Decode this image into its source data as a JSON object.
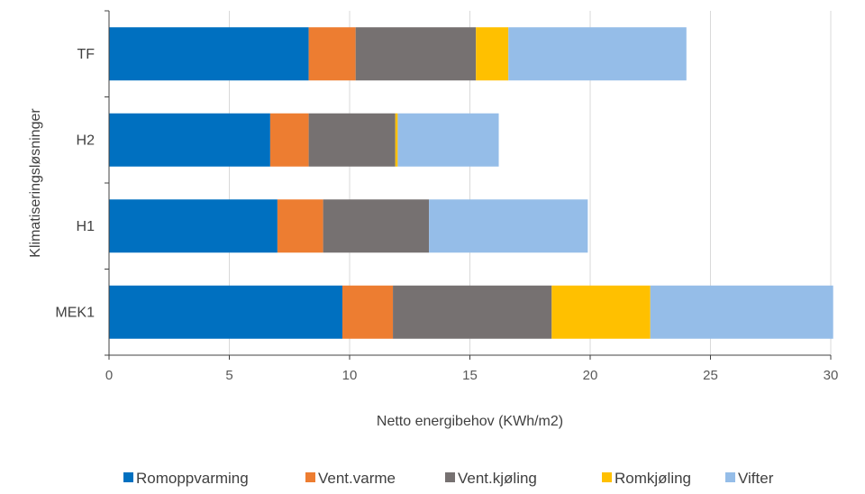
{
  "chart_data": {
    "type": "bar",
    "orientation": "horizontal",
    "stacked": true,
    "categories": [
      "MEK1",
      "H1",
      "H2",
      "TF"
    ],
    "series": [
      {
        "name": "Romoppvarming",
        "color": "#0070C0",
        "values": [
          9.7,
          7.0,
          6.7,
          8.3
        ]
      },
      {
        "name": "Vent.varme",
        "color": "#ED7D31",
        "values": [
          2.1,
          1.9,
          1.6,
          1.95
        ]
      },
      {
        "name": "Vent.kjøling",
        "color": "#767171",
        "values": [
          6.6,
          4.4,
          3.6,
          5.0
        ]
      },
      {
        "name": "Romkjøling",
        "color": "#FFC000",
        "values": [
          4.1,
          0.0,
          0.1,
          1.35
        ]
      },
      {
        "name": "Vifter",
        "color": "#95BDE8",
        "values": [
          7.6,
          6.6,
          4.2,
          7.4
        ]
      }
    ],
    "xlabel": "Netto energibehov (KWh/m2)",
    "ylabel": "Klimatiseringsløsninger",
    "xlim": [
      0,
      30
    ],
    "xticks": [
      0,
      5,
      10,
      15,
      20,
      25,
      30
    ],
    "xtick_labels": [
      "0",
      "5",
      "10",
      "15",
      "20",
      "25",
      "30"
    ],
    "grid": "vertical",
    "legend_position": "bottom"
  }
}
